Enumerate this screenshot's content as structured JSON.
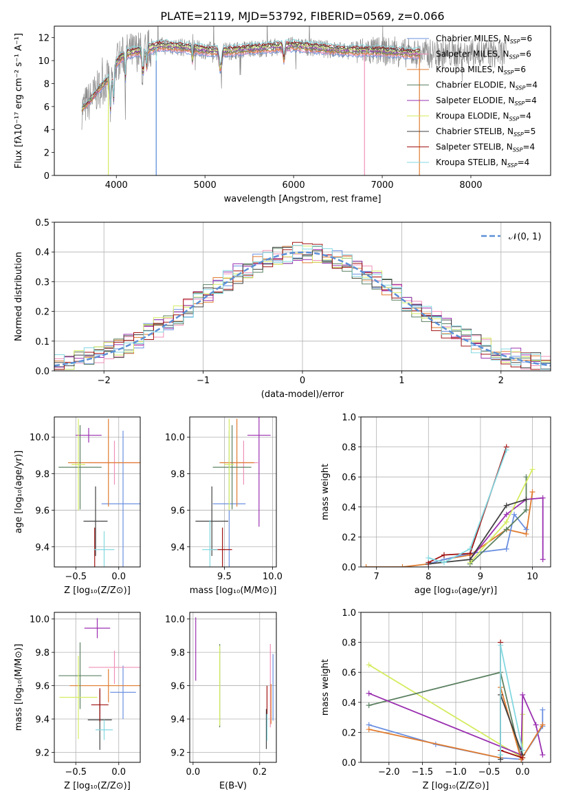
{
  "page_title": "PLATE=2119, MJD=53792, FIBERID=0569, z=0.066",
  "palette": {
    "ch_miles": "#6a8fe0",
    "sa_miles": "#ef8fb8",
    "kr_miles": "#e07b2e",
    "ch_elodie": "#5b8060",
    "sa_elodie": "#9a2fb0",
    "kr_elodie": "#d4ec60",
    "ch_stelib": "#404040",
    "sa_stelib": "#a01010",
    "kr_stelib": "#82d8e0",
    "data": "#888888",
    "normal": "#5b8fd6"
  },
  "chart_data": [
    {
      "id": "spectrum",
      "type": "line",
      "title": "PLATE=2119, MJD=53792, FIBERID=0569, z=0.066",
      "xlabel": "wavelength [Angstrom, rest frame]",
      "ylabel": "Flux [fλ10⁻¹⁷ erg cm⁻² s⁻¹ A⁻¹]",
      "xlim": [
        3300,
        8900
      ],
      "ylim": [
        0,
        13
      ],
      "xticks": [
        4000,
        5000,
        6000,
        7000,
        8000
      ],
      "yticks": [
        0,
        2,
        4,
        6,
        8,
        10,
        12
      ],
      "legend": "upper right",
      "grid": false,
      "continuum": {
        "x": [
          3600,
          3700,
          3800,
          3900,
          4000,
          4100,
          4300,
          4500,
          4700,
          5000,
          5200,
          5500,
          6000,
          6500,
          7000,
          7400
        ],
        "y": [
          5.7,
          6.5,
          7.5,
          8.3,
          9.8,
          10.6,
          10.9,
          11.3,
          11.2,
          10.9,
          10.8,
          11.0,
          11.3,
          10.9,
          10.8,
          10.6
        ]
      },
      "legend_entries": [
        "Chabrier MILES, N_SSP=6",
        "Salpeter MILES, N_SSP=6",
        "Kroupa MILES, N_SSP=6",
        "Chabrier ELODIE, N_SSP=4",
        "Salpeter ELODIE, N_SSP=4",
        "Kroupa ELODIE, N_SSP=4",
        "Chabrier STELIB, N_SSP=5",
        "Salpeter STELIB, N_SSP=4",
        "Kroupa STELIB, N_SSP=4"
      ],
      "series_keys": [
        "ch_miles",
        "sa_miles",
        "kr_miles",
        "ch_elodie",
        "sa_elodie",
        "kr_elodie",
        "ch_stelib",
        "sa_stelib",
        "kr_stelib"
      ]
    },
    {
      "id": "residuals",
      "type": "histogram",
      "xlabel": "(data-model)/error",
      "ylabel": "Normed distribution",
      "xlim": [
        -2.5,
        2.5
      ],
      "ylim": [
        0,
        0.5
      ],
      "xticks": [
        -2,
        -1,
        0,
        1,
        2
      ],
      "yticks": [
        0.0,
        0.1,
        0.2,
        0.3,
        0.4,
        0.5
      ],
      "grid": true,
      "legend": "upper right",
      "legend_label": "𝒩(0, 1)",
      "bin_width": 0.1
    },
    {
      "id": "age_vs_Z",
      "type": "errorbar",
      "xlabel": "Z [log₁₀(Z/Z⊙)]",
      "ylabel": "age  [log₁₀(age/yr)]",
      "xlim": [
        -0.75,
        0.25
      ],
      "ylim": [
        9.29,
        10.11
      ],
      "xticks": [
        -0.5,
        0.0
      ],
      "yticks": [
        9.4,
        9.6,
        9.8,
        10.0
      ],
      "grid": true,
      "points": [
        {
          "s": "ch_miles",
          "x": 0.05,
          "y": 9.635,
          "xerr": 0.25,
          "yerr": 0.4
        },
        {
          "s": "sa_miles",
          "x": -0.05,
          "y": 9.86,
          "xerr": 0.3,
          "yerr": 0.12
        },
        {
          "s": "kr_miles",
          "x": -0.12,
          "y": 9.86,
          "xerr": 0.47,
          "yerr": 0.24
        },
        {
          "s": "ch_elodie",
          "x": -0.45,
          "y": 9.835,
          "xerr": 0.25,
          "yerr": 0.23
        },
        {
          "s": "sa_elodie",
          "x": -0.35,
          "y": 10.01,
          "xerr": 0.15,
          "yerr": 0.04
        },
        {
          "s": "kr_elodie",
          "x": -0.47,
          "y": 9.85,
          "xerr": 0.08,
          "yerr": 0.25
        },
        {
          "s": "ch_stelib",
          "x": -0.27,
          "y": 9.54,
          "xerr": 0.14,
          "yerr": 0.19
        },
        {
          "s": "sa_stelib",
          "x": -0.28,
          "y": 9.385,
          "xerr": 0.01,
          "yerr": 0.12
        },
        {
          "s": "kr_stelib",
          "x": -0.17,
          "y": 9.385,
          "xerr": 0.12,
          "yerr": 0.1
        }
      ]
    },
    {
      "id": "age_vs_mass",
      "type": "errorbar",
      "xlabel": "mass [log₁₀(M/M⊙)]",
      "ylabel": "",
      "xlim": [
        9.14,
        10.04
      ],
      "ylim": [
        9.29,
        10.11
      ],
      "xticks": [
        9.5,
        10.0
      ],
      "yticks": [
        9.4,
        9.6,
        9.8,
        10.0
      ],
      "grid": true,
      "points": [
        {
          "s": "ch_miles",
          "x": 9.55,
          "y": 9.635,
          "xerr": 0.17,
          "yerr": 0.4
        },
        {
          "s": "sa_miles",
          "x": 9.7,
          "y": 9.86,
          "xerr": 0.15,
          "yerr": 0.12
        },
        {
          "s": "kr_miles",
          "x": 9.63,
          "y": 9.86,
          "xerr": 0.18,
          "yerr": 0.24
        },
        {
          "s": "ch_elodie",
          "x": 9.58,
          "y": 9.835,
          "xerr": 0.2,
          "yerr": 0.23
        },
        {
          "s": "sa_elodie",
          "x": 9.86,
          "y": 10.01,
          "xerr": 0.12,
          "yerr": 0.5
        },
        {
          "s": "kr_elodie",
          "x": 9.55,
          "y": 9.85,
          "xerr": 0.05,
          "yerr": 0.25
        },
        {
          "s": "ch_stelib",
          "x": 9.37,
          "y": 9.54,
          "xerr": 0.17,
          "yerr": 0.19
        },
        {
          "s": "sa_stelib",
          "x": 9.48,
          "y": 9.385,
          "xerr": 0.1,
          "yerr": 0.12
        },
        {
          "s": "kr_stelib",
          "x": 9.35,
          "y": 9.385,
          "xerr": 0.08,
          "yerr": 0.16
        }
      ]
    },
    {
      "id": "mw_vs_age",
      "type": "line",
      "xlabel": "age  [log₁₀(age/yr)]",
      "ylabel": "mass weight",
      "xlim": [
        6.7,
        10.35
      ],
      "ylim": [
        0,
        1.0
      ],
      "xticks": [
        7,
        8,
        9,
        10
      ],
      "yticks": [
        0.0,
        0.2,
        0.4,
        0.6,
        0.8,
        1.0
      ],
      "grid": true,
      "series": [
        {
          "s": "kr_miles",
          "x": [
            6.8,
            7.5,
            8.0,
            8.3,
            8.8,
            9.5,
            9.88,
            10.0
          ],
          "y": [
            0.0,
            0.0,
            0.02,
            0.05,
            0.08,
            0.25,
            0.22,
            0.5
          ]
        },
        {
          "s": "ch_miles",
          "x": [
            8.0,
            8.3,
            8.8,
            9.5,
            9.65,
            9.88
          ],
          "y": [
            0.02,
            0.05,
            0.09,
            0.12,
            0.35,
            0.25
          ]
        },
        {
          "s": "ch_elodie",
          "x": [
            8.8,
            9.5,
            9.88,
            9.88
          ],
          "y": [
            0.02,
            0.25,
            0.38,
            0.6
          ]
        },
        {
          "s": "sa_elodie",
          "x": [
            8.8,
            9.5,
            9.88,
            10.2,
            10.2
          ],
          "y": [
            0.05,
            0.35,
            0.45,
            0.46,
            0.05
          ]
        },
        {
          "s": "kr_elodie",
          "x": [
            8.8,
            9.5,
            10.0
          ],
          "y": [
            0.03,
            0.3,
            0.65
          ]
        },
        {
          "s": "ch_stelib",
          "x": [
            8.0,
            8.8,
            9.5,
            9.88
          ],
          "y": [
            0.02,
            0.05,
            0.41,
            0.45
          ]
        },
        {
          "s": "sa_stelib",
          "x": [
            8.0,
            8.3,
            8.8,
            9.5
          ],
          "y": [
            0.03,
            0.08,
            0.09,
            0.8
          ]
        },
        {
          "s": "kr_stelib",
          "x": [
            8.0,
            8.3,
            8.8,
            9.5
          ],
          "y": [
            0.06,
            0.03,
            0.12,
            0.78
          ]
        }
      ]
    },
    {
      "id": "mass_vs_Z",
      "type": "errorbar",
      "xlabel": "Z [log₁₀(Z/Z⊙)]",
      "ylabel": "mass [log₁₀(M/M⊙)]",
      "xlim": [
        -0.75,
        0.25
      ],
      "ylim": [
        9.14,
        10.04
      ],
      "xticks": [
        -0.5,
        0.0
      ],
      "yticks": [
        9.2,
        9.4,
        9.6,
        9.8,
        10.0
      ],
      "grid": true,
      "points": [
        {
          "s": "ch_miles",
          "x": 0.05,
          "y": 9.56,
          "xerr": 0.15,
          "yerr": 0.16
        },
        {
          "s": "sa_miles",
          "x": -0.05,
          "y": 9.71,
          "xerr": 0.3,
          "yerr": 0.1
        },
        {
          "s": "kr_miles",
          "x": -0.12,
          "y": 9.6,
          "xerr": 0.45,
          "yerr": 0.1
        },
        {
          "s": "ch_elodie",
          "x": -0.45,
          "y": 9.66,
          "xerr": 0.25,
          "yerr": 0.2
        },
        {
          "s": "sa_elodie",
          "x": -0.25,
          "y": 9.945,
          "xerr": 0.15,
          "yerr": 0.06
        },
        {
          "s": "kr_elodie",
          "x": -0.47,
          "y": 9.53,
          "xerr": 0.22,
          "yerr": 0.25
        },
        {
          "s": "ch_stelib",
          "x": -0.22,
          "y": 9.395,
          "xerr": 0.14,
          "yerr": 0.18
        },
        {
          "s": "sa_stelib",
          "x": -0.22,
          "y": 9.485,
          "xerr": 0.1,
          "yerr": 0.1
        },
        {
          "s": "kr_stelib",
          "x": -0.17,
          "y": 9.335,
          "xerr": 0.1,
          "yerr": 0.06
        }
      ]
    },
    {
      "id": "mass_vs_ebv",
      "type": "errorbar",
      "xlabel": "E(B-V)",
      "ylabel": "",
      "xlim": [
        -0.01,
        0.25
      ],
      "ylim": [
        9.14,
        10.04
      ],
      "xticks": [
        0.0,
        0.2
      ],
      "yticks": [
        9.2,
        9.4,
        9.6,
        9.8,
        10.0
      ],
      "grid": true,
      "points": [
        {
          "s": "sa_elodie",
          "x": 0.008,
          "y": 9.82,
          "xerr": 0,
          "yerr": 0.19
        },
        {
          "s": "ch_elodie",
          "x": 0.08,
          "y": 9.6,
          "xerr": 0,
          "yerr": 0.25
        },
        {
          "s": "kr_elodie",
          "x": 0.08,
          "y": 9.6,
          "xerr": 0,
          "yerr": 0.24
        },
        {
          "s": "ch_miles",
          "x": 0.24,
          "y": 9.59,
          "xerr": 0,
          "yerr": 0.2
        },
        {
          "s": "sa_miles",
          "x": 0.232,
          "y": 9.6,
          "xerr": 0,
          "yerr": 0.25
        },
        {
          "s": "kr_miles",
          "x": 0.234,
          "y": 9.49,
          "xerr": 0,
          "yerr": 0.12
        },
        {
          "s": "sa_stelib",
          "x": 0.222,
          "y": 9.48,
          "xerr": 0,
          "yerr": 0.12
        },
        {
          "s": "ch_stelib",
          "x": 0.22,
          "y": 9.34,
          "xerr": 0,
          "yerr": 0.12
        },
        {
          "s": "kr_stelib",
          "x": 0.222,
          "y": 9.35,
          "xerr": 0,
          "yerr": 0.08
        }
      ]
    },
    {
      "id": "mw_vs_Z",
      "type": "line",
      "xlabel": "Z [log₁₀(Z/Z⊙)]",
      "ylabel": "mass weight",
      "xlim": [
        -2.42,
        0.42
      ],
      "ylim": [
        0,
        1.0
      ],
      "xticks": [
        -2.0,
        -1.5,
        -1.0,
        -0.5,
        0.0
      ],
      "yticks": [
        0.0,
        0.2,
        0.4,
        0.6,
        0.8,
        1.0
      ],
      "grid": true,
      "series": [
        {
          "s": "kr_elodie",
          "x": [
            -2.3,
            0.0,
            0.0
          ],
          "y": [
            0.65,
            0.03,
            0.32
          ]
        },
        {
          "s": "ch_elodie",
          "x": [
            -2.3,
            -0.33,
            -0.02
          ],
          "y": [
            0.38,
            0.6,
            0.02
          ]
        },
        {
          "s": "sa_elodie",
          "x": [
            -2.3,
            -0.02,
            0.0,
            0.2,
            0.3
          ],
          "y": [
            0.46,
            0.05,
            0.45,
            0.25,
            0.05
          ]
        },
        {
          "s": "ch_miles",
          "x": [
            -2.3,
            -1.3,
            -0.33,
            -0.02,
            0.3,
            0.3
          ],
          "y": [
            0.25,
            0.12,
            0.03,
            0.02,
            0.24,
            0.35
          ]
        },
        {
          "s": "kr_miles",
          "x": [
            -2.3,
            -0.33,
            -0.33,
            -0.02,
            0.3
          ],
          "y": [
            0.22,
            0.03,
            0.5,
            0.02,
            0.25
          ]
        },
        {
          "s": "ch_stelib",
          "x": [
            -0.33,
            -0.33,
            0.0
          ],
          "y": [
            0.02,
            0.45,
            0.05
          ]
        },
        {
          "s": "sa_stelib",
          "x": [
            -0.33,
            -0.33,
            0.0
          ],
          "y": [
            0.8,
            0.08,
            0.03
          ]
        },
        {
          "s": "kr_stelib",
          "x": [
            -0.33,
            -0.33,
            0.0
          ],
          "y": [
            0.05,
            0.78,
            0.08
          ]
        }
      ]
    }
  ]
}
